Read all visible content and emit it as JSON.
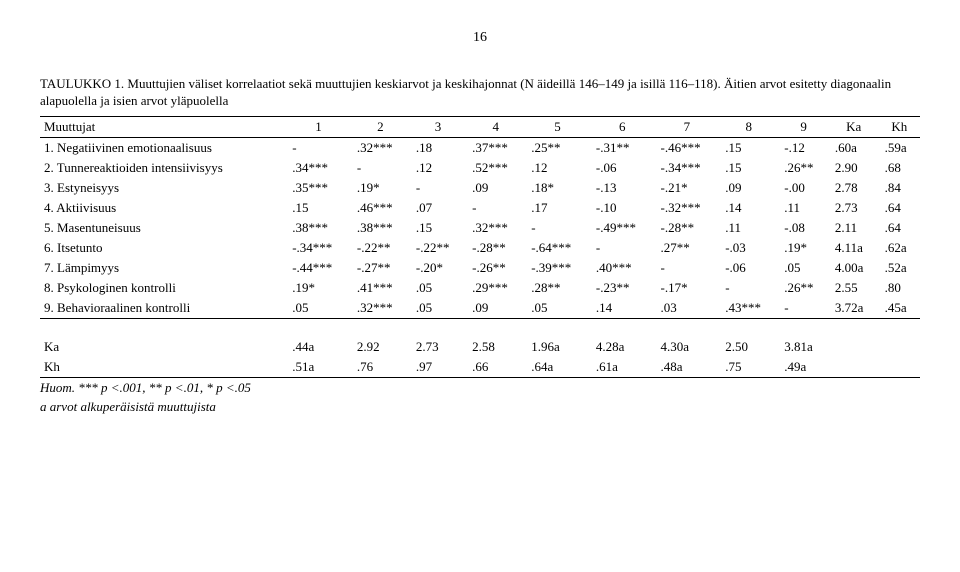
{
  "page_number": "16",
  "caption": "TAULUKKO 1. Muuttujien väliset korrelaatiot sekä muuttujien keskiarvot ja keskihajonnat (N äideillä 146–149 ja isillä 116–118). Äitien arvot esitetty diagonaalin alapuolella ja isien arvot yläpuolella",
  "header": {
    "col0": "Muuttujat",
    "cols": [
      "1",
      "2",
      "3",
      "4",
      "5",
      "6",
      "7",
      "8",
      "9",
      "Ka",
      "Kh"
    ]
  },
  "rows": [
    {
      "label": "1. Negatiivinen emotionaalisuus",
      "c": [
        "-",
        ".32***",
        ".18",
        ".37***",
        ".25**",
        "-.31**",
        "-.46***",
        ".15",
        "-.12",
        ".60a",
        ".59a"
      ]
    },
    {
      "label": "2. Tunnereaktioiden intensiivisyys",
      "c": [
        ".34***",
        "-",
        ".12",
        ".52***",
        ".12",
        "-.06",
        "-.34***",
        ".15",
        ".26**",
        "2.90",
        ".68"
      ]
    },
    {
      "label": "3. Estyneisyys",
      "c": [
        ".35***",
        ".19*",
        "-",
        ".09",
        ".18*",
        "-.13",
        "-.21*",
        ".09",
        "-.00",
        "2.78",
        ".84"
      ]
    },
    {
      "label": "4. Aktiivisuus",
      "c": [
        ".15",
        ".46***",
        ".07",
        "-",
        ".17",
        "-.10",
        "-.32***",
        ".14",
        ".11",
        "2.73",
        ".64"
      ]
    },
    {
      "label": "5. Masentuneisuus",
      "c": [
        ".38***",
        ".38***",
        ".15",
        ".32***",
        "-",
        "-.49***",
        "-.28**",
        ".11",
        "-.08",
        "2.11",
        ".64"
      ]
    },
    {
      "label": "6. Itsetunto",
      "c": [
        "-.34***",
        "-.22**",
        "-.22**",
        "-.28**",
        "-.64***",
        "-",
        ".27**",
        "-.03",
        ".19*",
        "4.11a",
        ".62a"
      ]
    },
    {
      "label": "7. Lämpimyys",
      "c": [
        "-.44***",
        "-.27**",
        "-.20*",
        "-.26**",
        "-.39***",
        ".40***",
        "-",
        "-.06",
        ".05",
        "4.00a",
        ".52a"
      ]
    },
    {
      "label": "8. Psykologinen kontrolli",
      "c": [
        ".19*",
        ".41***",
        ".05",
        ".29***",
        ".28**",
        "-.23**",
        "-.17*",
        "-",
        ".26**",
        "2.55",
        ".80"
      ]
    },
    {
      "label": "9. Behavioraalinen kontrolli",
      "c": [
        ".05",
        ".32***",
        ".05",
        ".09",
        ".05",
        ".14",
        ".03",
        ".43***",
        "-",
        "3.72a",
        ".45a"
      ]
    }
  ],
  "summary": [
    {
      "label": "Ka",
      "c": [
        ".44a",
        "2.92",
        "2.73",
        "2.58",
        "1.96a",
        "4.28a",
        "4.30a",
        "2.50",
        "3.81a",
        "",
        ""
      ]
    },
    {
      "label": "Kh",
      "c": [
        ".51a",
        ".76",
        ".97",
        ".66",
        ".64a",
        ".61a",
        ".48a",
        ".75",
        ".49a",
        "",
        ""
      ]
    }
  ],
  "footnote1": "Huom. *** p <.001, ** p <.01, * p <.05",
  "footnote2": "a arvot alkuperäisistä muuttujista"
}
